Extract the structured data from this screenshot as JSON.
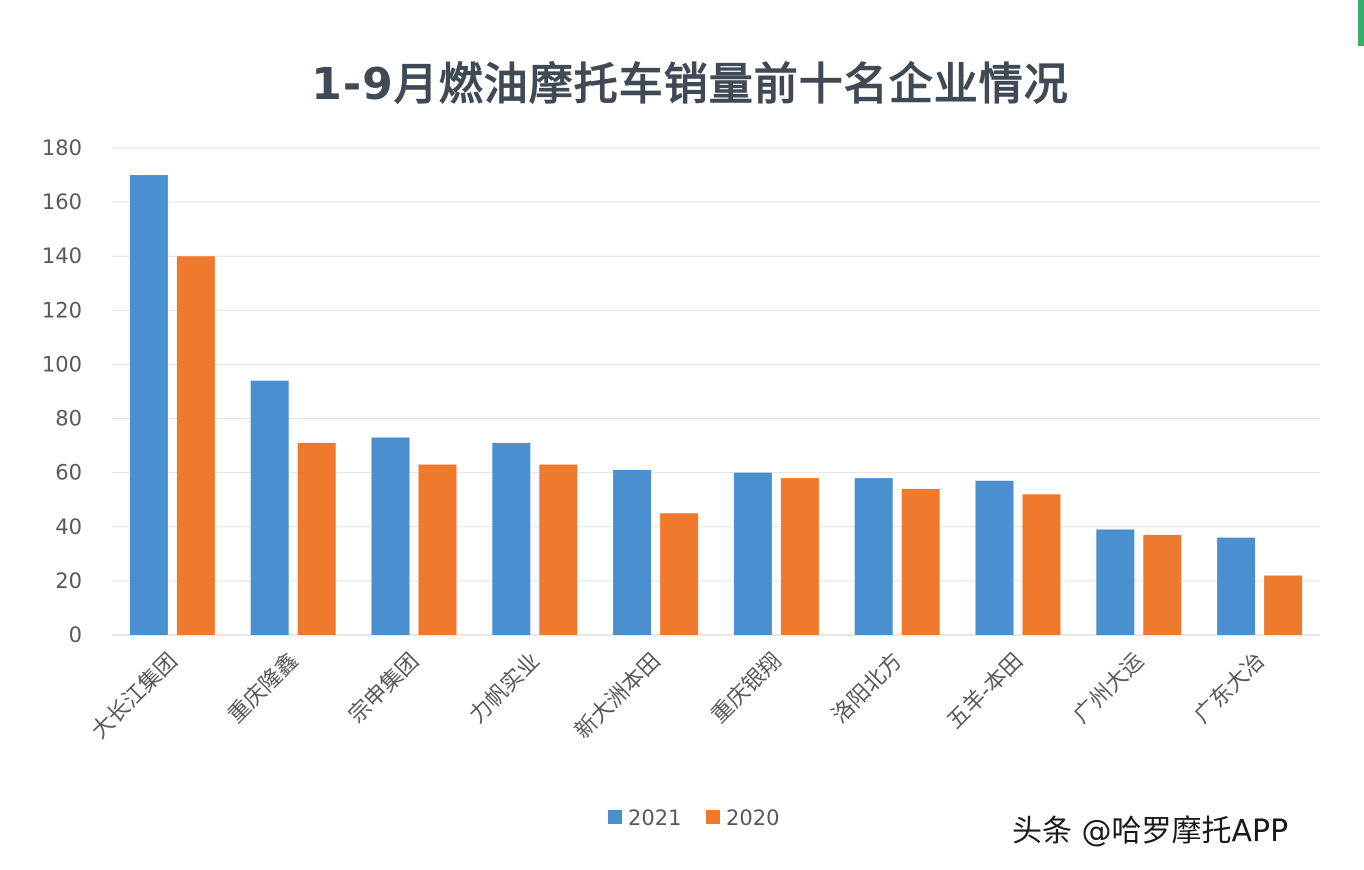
{
  "chart_data": {
    "type": "bar",
    "title": "1-9月燃油摩托车销量前十名企业情况",
    "categories": [
      "大长江集团",
      "重庆隆鑫",
      "宗申集团",
      "力帆实业",
      "新大洲本田",
      "重庆银翔",
      "洛阳北方",
      "五羊-本田",
      "广州大运",
      "广东大冶"
    ],
    "series": [
      {
        "name": "2021",
        "color": "#4a8fd0",
        "values": [
          170,
          94,
          73,
          71,
          61,
          60,
          58,
          57,
          39,
          36
        ]
      },
      {
        "name": "2020",
        "color": "#ef7a2d",
        "values": [
          140,
          71,
          63,
          63,
          45,
          58,
          54,
          52,
          37,
          22
        ]
      }
    ],
    "ylim": [
      0,
      180
    ],
    "yticks": [
      0,
      20,
      40,
      60,
      80,
      100,
      120,
      140,
      160,
      180
    ],
    "grid": true,
    "legend_position": "bottom"
  },
  "watermark": "头条 @哈罗摩托APP"
}
